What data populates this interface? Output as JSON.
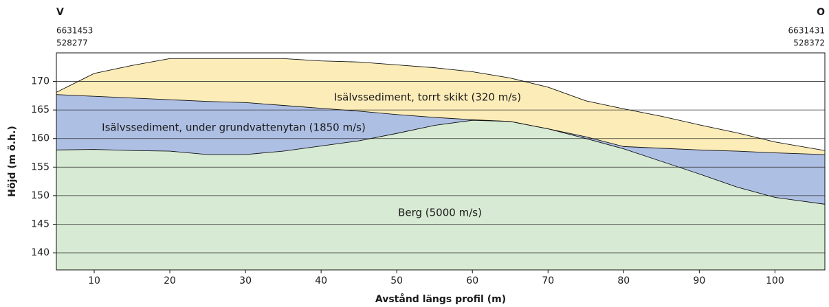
{
  "chart_data": {
    "type": "area",
    "header": {
      "left": {
        "direction": "V",
        "north": "6631453",
        "east": "528277"
      },
      "right": {
        "direction": "O",
        "north": "6631431",
        "east": "528372"
      }
    },
    "xlabel": "Avstånd längs profil (m)",
    "ylabel": "Höjd (m ö.h.)",
    "x": [
      5,
      10,
      15,
      20,
      25,
      30,
      35,
      40,
      45,
      50,
      55,
      60,
      65,
      70,
      75,
      80,
      85,
      90,
      95,
      100,
      106.6
    ],
    "series": [
      {
        "name": "Isälvssediment, torrt skikt (320 m/s)",
        "color": "#fcecb8",
        "values": [
          168.1,
          171.4,
          172.8,
          174.0,
          174.0,
          174.0,
          174.0,
          173.6,
          173.4,
          172.9,
          172.4,
          171.7,
          170.6,
          169.0,
          166.6,
          165.2,
          163.9,
          162.4,
          161.0,
          159.4,
          157.9
        ]
      },
      {
        "name": "Isälvssediment, under grundvattenytan (1850 m/s)",
        "color": "#aebfe4",
        "values": [
          167.7,
          167.4,
          167.1,
          166.8,
          166.5,
          166.3,
          165.8,
          165.3,
          164.8,
          164.2,
          163.7,
          163.3,
          163.0,
          161.7,
          160.3,
          158.6,
          158.3,
          158.0,
          157.8,
          157.5,
          157.2
        ]
      },
      {
        "name": "Berg (5000 m/s)",
        "color": "#d7ead3",
        "values": [
          158.0,
          158.1,
          157.9,
          157.8,
          157.2,
          157.2,
          157.8,
          158.7,
          159.6,
          160.9,
          162.3,
          163.2,
          163.0,
          161.7,
          160.0,
          158.2,
          156.0,
          153.8,
          151.5,
          149.7,
          148.5
        ]
      }
    ],
    "xlim": [
      5,
      106.6
    ],
    "ylim": [
      137,
      175
    ],
    "xticks": [
      10,
      20,
      30,
      40,
      50,
      60,
      70,
      80,
      90,
      100
    ],
    "yticks": [
      140,
      145,
      150,
      155,
      160,
      165,
      170
    ],
    "grid": true
  }
}
